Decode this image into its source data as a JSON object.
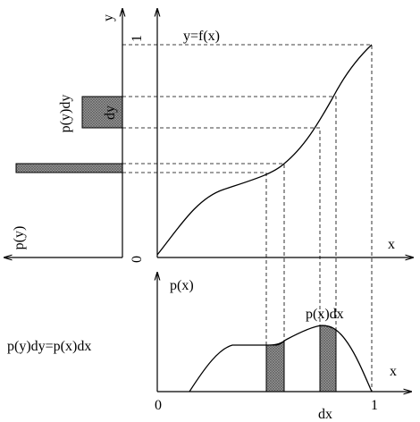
{
  "labels": {
    "y_axis": "y",
    "y_one": "1",
    "function": "y=f(x)",
    "pydy": "p(y)dy",
    "dy": "dy",
    "py": "p(y)",
    "origin_top": "0",
    "x_axis_top": "x",
    "px": "p(x)",
    "pxdx": "p(x)dx",
    "equation": "p(y)dy=p(x)dx",
    "origin_bottom": "0",
    "x_one": "1",
    "dx": "dx",
    "x_axis_bottom": "x"
  }
}
